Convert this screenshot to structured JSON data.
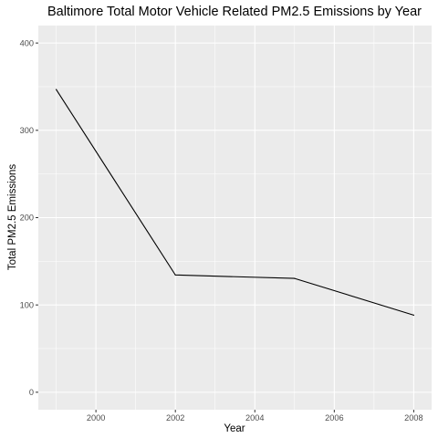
{
  "chart_data": {
    "type": "line",
    "title": "Baltimore Total Motor Vehicle Related PM2.5 Emissions by Year",
    "xlabel": "Year",
    "ylabel": "Total PM2.5 Emissions",
    "x": [
      1999,
      2002,
      2005,
      2008
    ],
    "series": [
      {
        "values": [
          346.8,
          134.3,
          130.4,
          88.3
        ]
      }
    ],
    "xlim": [
      1998.55,
      2008.45
    ],
    "ylim": [
      -20,
      420
    ],
    "xticks": [
      2000,
      2002,
      2004,
      2006,
      2008
    ],
    "xtick_labels": [
      "2000",
      "2002",
      "2004",
      "2006",
      "2008"
    ],
    "yticks": [
      0,
      100,
      200,
      300,
      400
    ],
    "ytick_labels": [
      "0",
      "100",
      "200",
      "300",
      "400"
    ],
    "grid": true,
    "legend": "none",
    "colors": {
      "panel_background": "#EBEBEB",
      "grid_major": "#FFFFFF",
      "line": "#000000",
      "tick_label": "#4D4D4D"
    }
  }
}
